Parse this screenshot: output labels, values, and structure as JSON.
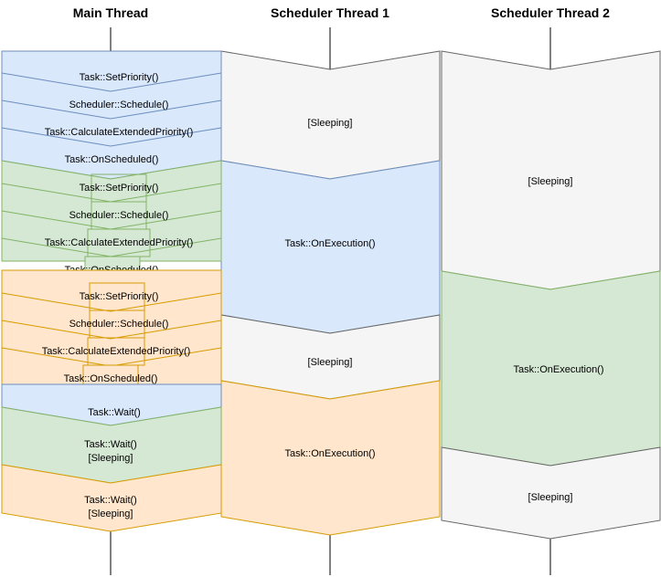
{
  "columns": {
    "main": "Main Thread",
    "sched1": "Scheduler Thread 1",
    "sched2": "Scheduler Thread 2"
  },
  "colors": {
    "blue_fill": "#dae8fc",
    "blue_stroke": "#6c8ebf",
    "green_fill": "#d5e8d4",
    "green_stroke": "#82b366",
    "orange_fill": "#ffe6cc",
    "orange_stroke": "#d79b00",
    "gray_fill": "#f5f5f5",
    "gray_stroke": "#666666"
  },
  "main_thread": {
    "blue_block": [
      "Task::SetPriority()",
      "Scheduler::Schedule()",
      "Task::CalculateExtendedPriority()",
      "Task::OnScheduled()"
    ],
    "green_block": [
      "Task::SetPriority()",
      "Scheduler::Schedule()",
      "Task::CalculateExtendedPriority()",
      "Task::OnScheduled()"
    ],
    "orange_block": [
      "Task::SetPriority()",
      "Scheduler::Schedule()",
      "Task::CalculateExtendedPriority()",
      "Task::OnScheduled()"
    ],
    "wait_blue": "Task::Wait()",
    "wait_green": [
      "Task::Wait()",
      "[Sleeping]"
    ],
    "wait_orange": [
      "Task::Wait()",
      "[Sleeping]"
    ]
  },
  "scheduler_thread_1": {
    "sleep1": "[Sleeping]",
    "exec_blue": "Task::OnExecution()",
    "sleep2": "[Sleeping]",
    "exec_orange": "Task::OnExecution()"
  },
  "scheduler_thread_2": {
    "sleep1": "[Sleeping]",
    "exec_green": "Task::OnExecution()",
    "sleep2": "[Sleeping]"
  }
}
